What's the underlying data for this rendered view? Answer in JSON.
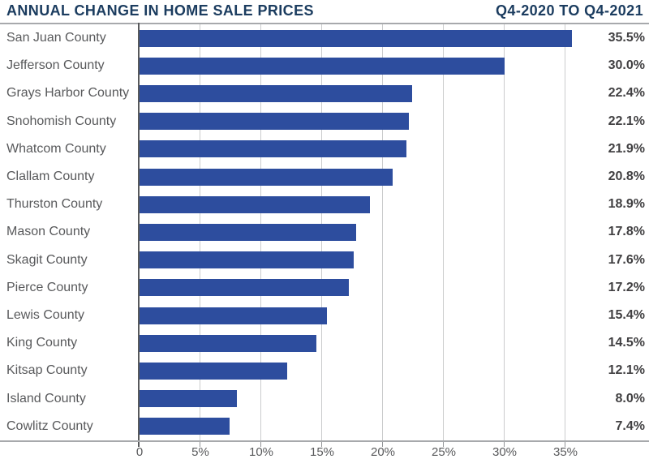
{
  "header": {
    "title": "ANNUAL CHANGE IN HOME SALE PRICES",
    "subtitle": "Q4-2020 TO Q4-2021"
  },
  "chart_data": {
    "type": "bar",
    "orientation": "horizontal",
    "title": "ANNUAL CHANGE IN HOME SALE PRICES",
    "subtitle": "Q4-2020 TO Q4-2021",
    "categories": [
      "San Juan County",
      "Jefferson County",
      "Grays Harbor County",
      "Snohomish County",
      "Whatcom County",
      "Clallam County",
      "Thurston County",
      "Mason County",
      "Skagit County",
      "Pierce County",
      "Lewis County",
      "King County",
      "Kitsap County",
      "Island County",
      "Cowlitz County"
    ],
    "values": [
      35.5,
      30.0,
      22.4,
      22.1,
      21.9,
      20.8,
      18.9,
      17.8,
      17.6,
      17.2,
      15.4,
      14.5,
      12.1,
      8.0,
      7.4
    ],
    "value_labels": [
      "35.5%",
      "30.0%",
      "22.4%",
      "22.1%",
      "21.9%",
      "20.8%",
      "18.9%",
      "17.8%",
      "17.6%",
      "17.2%",
      "15.4%",
      "14.5%",
      "12.1%",
      "8.0%",
      "7.4%"
    ],
    "x_ticks": [
      {
        "value": 0,
        "label": "0"
      },
      {
        "value": 5,
        "label": "5%"
      },
      {
        "value": 10,
        "label": "10%"
      },
      {
        "value": 15,
        "label": "15%"
      },
      {
        "value": 20,
        "label": "20%"
      },
      {
        "value": 25,
        "label": "25%"
      },
      {
        "value": 30,
        "label": "30%"
      },
      {
        "value": 35,
        "label": "35%"
      }
    ],
    "xlim": [
      0,
      41.9
    ],
    "xlabel": "",
    "ylabel": "",
    "grid": "vertical",
    "legend": "none"
  },
  "colors": {
    "bar": "#2d4d9e",
    "title": "#1b3c5f",
    "category_label": "#58595b",
    "value_label": "#414042",
    "axis_label": "#595a5c",
    "gridline": "#cbcccd",
    "rule": "#a7a9ac",
    "axis_line": "#58595b",
    "background": "#ffffff"
  }
}
